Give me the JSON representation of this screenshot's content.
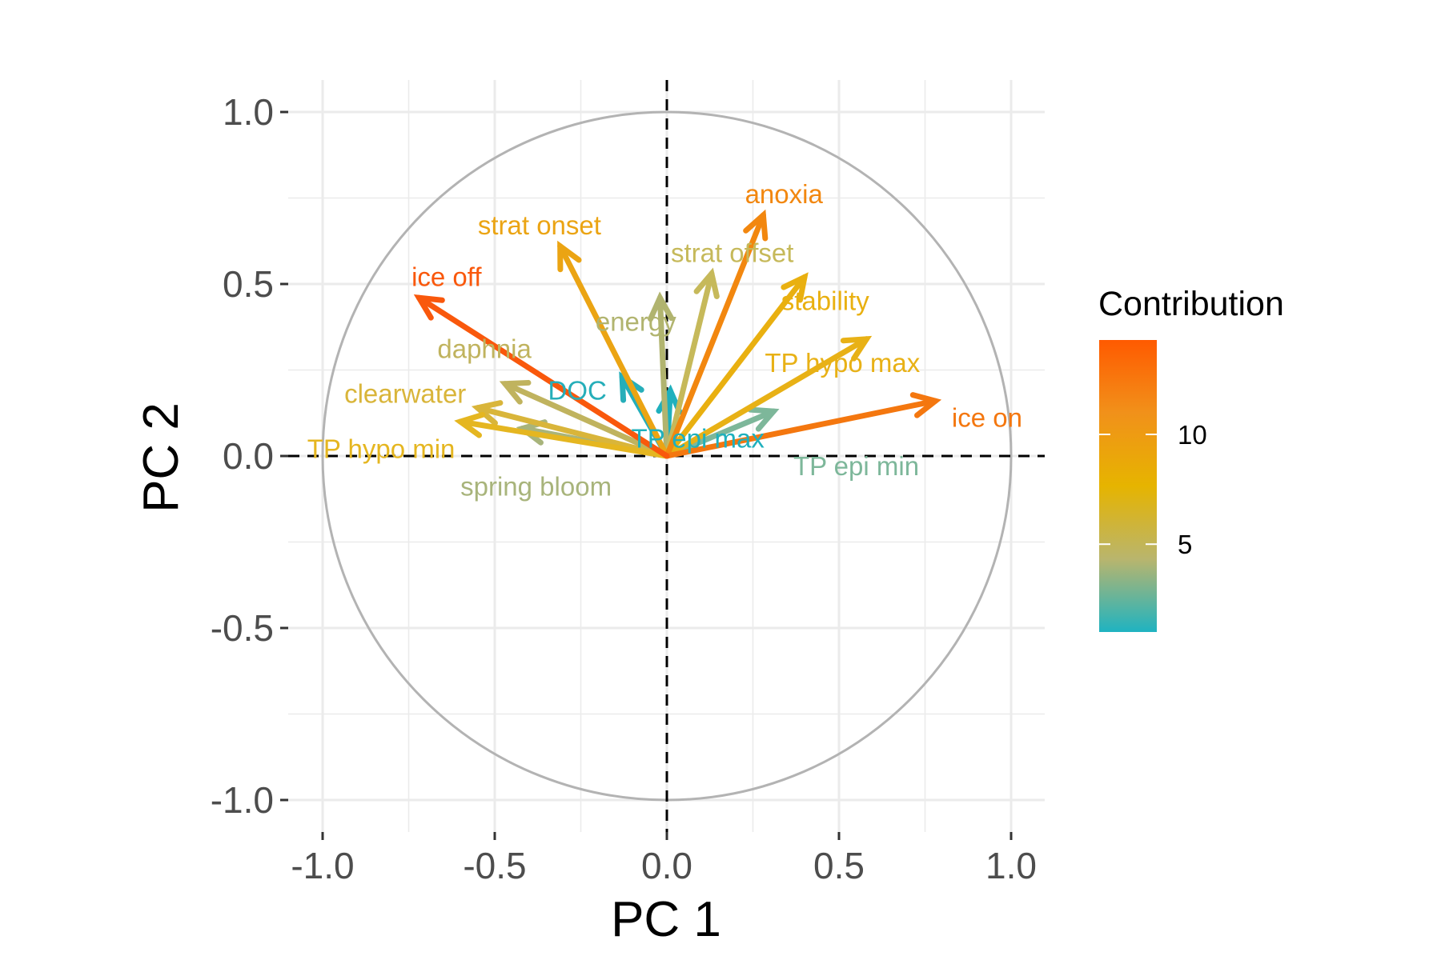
{
  "chart_data": {
    "type": "scatter",
    "subtype": "pca-variable-correlation-circle",
    "xlabel": "PC 1",
    "ylabel": "PC 2",
    "xlim": [
      -1.1,
      1.1
    ],
    "ylim": [
      -1.1,
      1.1
    ],
    "x_ticks": [
      -1.0,
      -0.5,
      0.0,
      0.5,
      1.0
    ],
    "y_ticks": [
      -1.0,
      -0.5,
      0.0,
      0.5,
      1.0
    ],
    "x_tick_labels": [
      "-1.0",
      "-0.5",
      "0.0",
      "0.5",
      "1.0"
    ],
    "y_tick_labels": [
      "-1.0",
      "-0.5",
      "0.0",
      "0.5",
      "1.0"
    ],
    "grid": true,
    "unit_circle": true,
    "reference_lines": "dashed lines at x = 0 and y = 0",
    "legend": {
      "title": "Contribution",
      "placement": "right",
      "range": [
        1,
        14.3
      ],
      "ticks": [
        5,
        10
      ],
      "tick_labels": [
        "5",
        "10"
      ],
      "gradient_colors": [
        "#1fb3c1",
        "#b9b56d",
        "#e6b400",
        "#f1911a",
        "#ff5a00"
      ]
    },
    "variables": [
      {
        "name": "ice off",
        "x": -0.72,
        "y": 0.46,
        "contribution": 13.8,
        "color": "#f9580c"
      },
      {
        "name": "strat onset",
        "x": -0.31,
        "y": 0.61,
        "contribution": 9.5,
        "color": "#eba413"
      },
      {
        "name": "anoxia",
        "x": 0.28,
        "y": 0.7,
        "contribution": 11.0,
        "color": "#f2870f"
      },
      {
        "name": "strat offset",
        "x": 0.13,
        "y": 0.53,
        "contribution": 6.0,
        "color": "#c6b95a"
      },
      {
        "name": "stability",
        "x": 0.4,
        "y": 0.52,
        "contribution": 8.5,
        "color": "#e9b010"
      },
      {
        "name": "energy",
        "x": -0.02,
        "y": 0.46,
        "contribution": 4.5,
        "color": "#b1b46f"
      },
      {
        "name": "TP hypo max",
        "x": 0.58,
        "y": 0.34,
        "contribution": 8.0,
        "color": "#e8b116"
      },
      {
        "name": "ice on",
        "x": 0.78,
        "y": 0.16,
        "contribution": 12.0,
        "color": "#f4770f"
      },
      {
        "name": "daphnia",
        "x": -0.47,
        "y": 0.21,
        "contribution": 5.5,
        "color": "#c0b35e"
      },
      {
        "name": "clearwater",
        "x": -0.55,
        "y": 0.14,
        "contribution": 7.0,
        "color": "#d9b53a"
      },
      {
        "name": "TP hypo min",
        "x": -0.6,
        "y": 0.1,
        "contribution": 7.5,
        "color": "#e5b620"
      },
      {
        "name": "spring bloom",
        "x": -0.42,
        "y": 0.08,
        "contribution": 4.0,
        "color": "#a8b47b"
      },
      {
        "name": "DOC",
        "x": -0.13,
        "y": 0.23,
        "contribution": 1.5,
        "color": "#26aeb9"
      },
      {
        "name": "TP epi min",
        "x": 0.31,
        "y": 0.13,
        "contribution": 3.5,
        "color": "#7db79a"
      },
      {
        "name": "TP epi max",
        "x": 0.01,
        "y": 0.19,
        "contribution": 1.2,
        "color": "#1fb0bd"
      }
    ],
    "label_positions": [
      {
        "name": "ice off",
        "lx": -0.64,
        "ly": 0.52
      },
      {
        "name": "strat onset",
        "lx": -0.37,
        "ly": 0.67
      },
      {
        "name": "anoxia",
        "lx": 0.34,
        "ly": 0.76
      },
      {
        "name": "strat offset",
        "lx": 0.19,
        "ly": 0.59
      },
      {
        "name": "stability",
        "lx": 0.46,
        "ly": 0.45
      },
      {
        "name": "energy",
        "lx": -0.09,
        "ly": 0.39
      },
      {
        "name": "TP hypo max",
        "lx": 0.51,
        "ly": 0.27
      },
      {
        "name": "ice on",
        "lx": 0.93,
        "ly": 0.11
      },
      {
        "name": "daphnia",
        "lx": -0.53,
        "ly": 0.31
      },
      {
        "name": "clearwater",
        "lx": -0.76,
        "ly": 0.18
      },
      {
        "name": "TP hypo min",
        "lx": -0.83,
        "ly": 0.02
      },
      {
        "name": "spring bloom",
        "lx": -0.38,
        "ly": -0.09
      },
      {
        "name": "DOC",
        "lx": -0.26,
        "ly": 0.19
      },
      {
        "name": "TP epi min",
        "lx": 0.55,
        "ly": -0.03
      },
      {
        "name": "TP epi max",
        "lx": 0.09,
        "ly": 0.05
      }
    ]
  }
}
